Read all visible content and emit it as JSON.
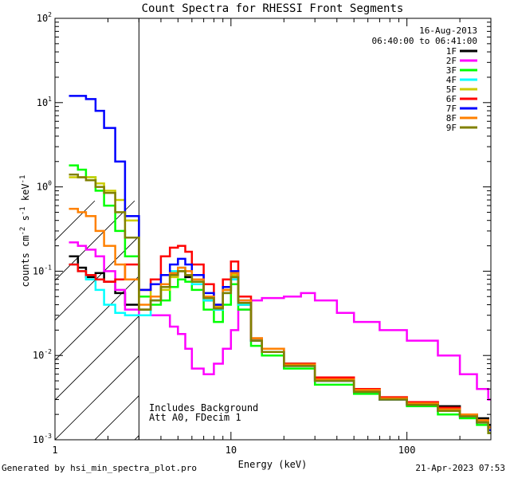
{
  "footer": {
    "left": "Generated by hsi_min_spectra_plot.pro",
    "right": "21-Apr-2023 07:53"
  },
  "chart_data": {
    "type": "line",
    "title": "Count Spectra for RHESSI Front Segments",
    "xlabel": "Energy (keV)",
    "ylabel": "counts cm-2 s-1 keV-1",
    "ylabel_parts": [
      "counts cm",
      "-2",
      " s",
      "-1",
      " keV",
      "-1"
    ],
    "xscale": "log",
    "yscale": "log",
    "xlim": [
      1,
      300
    ],
    "ylim": [
      0.001,
      100
    ],
    "x_ticks": [
      {
        "value": 1,
        "label": "1"
      },
      {
        "value": 10,
        "label": "10"
      },
      {
        "value": 100,
        "label": "100"
      }
    ],
    "y_ticks": [
      {
        "value": 0.001,
        "base": "10",
        "exp": "-3"
      },
      {
        "value": 0.01,
        "base": "10",
        "exp": "-2"
      },
      {
        "value": 0.1,
        "base": "10",
        "exp": "-1"
      },
      {
        "value": 1,
        "base": "10",
        "exp": "0"
      },
      {
        "value": 10,
        "base": "10",
        "exp": "1"
      },
      {
        "value": 100,
        "base": "10",
        "exp": "2"
      }
    ],
    "date": "16-Aug-2013",
    "time_range": "06:40:00 to 06:41:00",
    "annotations": [
      "Includes Background",
      "Att A0, FDecim 1"
    ],
    "shaded_region": {
      "x_range": [
        1,
        3
      ],
      "style": "diagonal-hatch"
    },
    "series": [
      {
        "name": "1F",
        "color": "#000000",
        "x": [
          1.2,
          1.35,
          1.5,
          1.7,
          1.9,
          2.2,
          2.5,
          3.0,
          3.5,
          4.0,
          4.5,
          5.0,
          5.5,
          6.0,
          7.0,
          8.0,
          9.0,
          10.0,
          11.0,
          13.0,
          15.0,
          20.0,
          30.0,
          50.0,
          70.0,
          100.0,
          150.0,
          200.0,
          250.0,
          290.0
        ],
        "values": [
          0.15,
          0.11,
          0.085,
          0.095,
          0.075,
          0.055,
          0.04,
          0.035,
          0.045,
          0.065,
          0.09,
          0.1,
          0.085,
          0.07,
          0.045,
          0.035,
          0.06,
          0.085,
          0.04,
          0.015,
          0.012,
          0.008,
          0.005,
          0.004,
          0.003,
          0.0028,
          0.0025,
          0.002,
          0.0018,
          0.0015
        ]
      },
      {
        "name": "2F",
        "color": "#ff00ff",
        "x": [
          1.2,
          1.35,
          1.5,
          1.7,
          1.9,
          2.2,
          2.5,
          3.0,
          3.5,
          4.0,
          4.5,
          5.0,
          5.5,
          6.0,
          7.0,
          8.0,
          9.0,
          10.0,
          11.0,
          13.0,
          15.0,
          20.0,
          25.0,
          30.0,
          40.0,
          50.0,
          70.0,
          100.0,
          150.0,
          200.0,
          250.0,
          290.0
        ],
        "values": [
          0.22,
          0.2,
          0.18,
          0.15,
          0.1,
          0.06,
          0.035,
          0.03,
          0.03,
          0.03,
          0.022,
          0.018,
          0.012,
          0.007,
          0.006,
          0.008,
          0.012,
          0.02,
          0.035,
          0.045,
          0.048,
          0.05,
          0.055,
          0.045,
          0.032,
          0.025,
          0.02,
          0.015,
          0.01,
          0.006,
          0.004,
          0.003
        ]
      },
      {
        "name": "3F",
        "color": "#00ff00",
        "x": [
          1.2,
          1.35,
          1.5,
          1.7,
          1.9,
          2.2,
          2.5,
          3.0,
          3.5,
          4.0,
          4.5,
          5.0,
          5.5,
          6.0,
          7.0,
          8.0,
          9.0,
          10.0,
          11.0,
          13.0,
          15.0,
          20.0,
          30.0,
          50.0,
          70.0,
          100.0,
          150.0,
          200.0,
          250.0,
          290.0
        ],
        "values": [
          1.8,
          1.6,
          1.3,
          0.9,
          0.6,
          0.3,
          0.15,
          0.05,
          0.04,
          0.045,
          0.065,
          0.08,
          0.075,
          0.06,
          0.035,
          0.025,
          0.04,
          0.07,
          0.035,
          0.013,
          0.01,
          0.007,
          0.0045,
          0.0035,
          0.003,
          0.0025,
          0.002,
          0.0018,
          0.0015,
          0.0012
        ]
      },
      {
        "name": "4F",
        "color": "#00ffff",
        "x": [
          1.2,
          1.35,
          1.5,
          1.7,
          1.9,
          2.2,
          2.5,
          3.0,
          3.5,
          4.0,
          4.5,
          5.0,
          5.5,
          6.0,
          7.0,
          8.0,
          9.0,
          10.0,
          11.0,
          13.0,
          15.0,
          20.0,
          30.0,
          50.0,
          70.0,
          100.0,
          150.0,
          200.0,
          250.0,
          290.0
        ],
        "values": [
          0.12,
          0.1,
          0.08,
          0.06,
          0.04,
          0.032,
          0.03,
          0.03,
          0.045,
          0.07,
          0.1,
          0.11,
          0.09,
          0.07,
          0.045,
          0.035,
          0.055,
          0.08,
          0.04,
          0.015,
          0.011,
          0.0075,
          0.005,
          0.0038,
          0.003,
          0.0026,
          0.0022,
          0.0019,
          0.0016,
          0.0013
        ]
      },
      {
        "name": "5F",
        "color": "#cccc00",
        "x": [
          1.2,
          1.35,
          1.5,
          1.7,
          1.9,
          2.2,
          2.5,
          3.0,
          3.5,
          4.0,
          4.5,
          5.0,
          5.5,
          6.0,
          7.0,
          8.0,
          9.0,
          10.0,
          11.0,
          13.0,
          15.0,
          20.0,
          30.0,
          50.0,
          70.0,
          100.0,
          150.0,
          200.0,
          250.0,
          290.0
        ],
        "values": [
          1.3,
          1.3,
          1.3,
          1.1,
          0.9,
          0.7,
          0.4,
          0.06,
          0.05,
          0.06,
          0.085,
          0.1,
          0.09,
          0.075,
          0.05,
          0.038,
          0.06,
          0.09,
          0.045,
          0.016,
          0.012,
          0.008,
          0.0052,
          0.004,
          0.0032,
          0.0028,
          0.0024,
          0.002,
          0.0017,
          0.0014
        ]
      },
      {
        "name": "6F",
        "color": "#ff0000",
        "x": [
          1.2,
          1.35,
          1.5,
          1.7,
          1.9,
          2.2,
          2.5,
          3.0,
          3.5,
          4.0,
          4.5,
          5.0,
          5.5,
          6.0,
          7.0,
          8.0,
          9.0,
          10.0,
          11.0,
          13.0,
          15.0,
          20.0,
          30.0,
          50.0,
          70.0,
          100.0,
          150.0,
          200.0,
          250.0,
          290.0
        ],
        "values": [
          0.12,
          0.1,
          0.09,
          0.08,
          0.075,
          0.08,
          0.12,
          0.06,
          0.08,
          0.15,
          0.19,
          0.2,
          0.17,
          0.12,
          0.07,
          0.04,
          0.08,
          0.13,
          0.05,
          0.016,
          0.012,
          0.008,
          0.0055,
          0.004,
          0.0032,
          0.0028,
          0.0024,
          0.002,
          0.0017,
          0.0014
        ]
      },
      {
        "name": "7F",
        "color": "#0000ff",
        "x": [
          1.2,
          1.35,
          1.5,
          1.7,
          1.9,
          2.2,
          2.5,
          3.0,
          3.5,
          4.0,
          4.5,
          5.0,
          5.5,
          6.0,
          7.0,
          8.0,
          9.0,
          10.0,
          11.0,
          13.0,
          15.0,
          20.0,
          30.0,
          50.0,
          70.0,
          100.0,
          150.0,
          200.0,
          250.0,
          290.0
        ],
        "values": [
          12.0,
          12.0,
          11.0,
          8.0,
          5.0,
          2.0,
          0.45,
          0.06,
          0.07,
          0.09,
          0.12,
          0.14,
          0.12,
          0.09,
          0.055,
          0.04,
          0.065,
          0.1,
          0.045,
          0.015,
          0.011,
          0.0075,
          0.005,
          0.0037,
          0.003,
          0.0026,
          0.0022,
          0.0019,
          0.0016,
          0.0013
        ]
      },
      {
        "name": "8F",
        "color": "#ff8000",
        "x": [
          1.2,
          1.35,
          1.5,
          1.7,
          1.9,
          2.2,
          2.5,
          3.0,
          3.5,
          4.0,
          4.5,
          5.0,
          5.5,
          6.0,
          7.0,
          8.0,
          9.0,
          10.0,
          11.0,
          13.0,
          15.0,
          20.0,
          30.0,
          50.0,
          70.0,
          100.0,
          150.0,
          200.0,
          250.0,
          290.0
        ],
        "values": [
          0.55,
          0.5,
          0.45,
          0.3,
          0.2,
          0.12,
          0.08,
          0.04,
          0.05,
          0.07,
          0.095,
          0.11,
          0.1,
          0.08,
          0.05,
          0.037,
          0.06,
          0.095,
          0.045,
          0.016,
          0.012,
          0.0078,
          0.0052,
          0.0039,
          0.0031,
          0.0027,
          0.0023,
          0.002,
          0.0017,
          0.0014
        ]
      },
      {
        "name": "9F",
        "color": "#808000",
        "x": [
          1.2,
          1.35,
          1.5,
          1.7,
          1.9,
          2.2,
          2.5,
          3.0,
          3.5,
          4.0,
          4.5,
          5.0,
          5.5,
          6.0,
          7.0,
          8.0,
          9.0,
          10.0,
          11.0,
          13.0,
          15.0,
          20.0,
          30.0,
          50.0,
          70.0,
          100.0,
          150.0,
          200.0,
          250.0,
          290.0
        ],
        "values": [
          1.4,
          1.3,
          1.2,
          1.0,
          0.85,
          0.5,
          0.25,
          0.035,
          0.045,
          0.065,
          0.09,
          0.1,
          0.09,
          0.075,
          0.048,
          0.036,
          0.055,
          0.085,
          0.042,
          0.015,
          0.011,
          0.0075,
          0.005,
          0.0037,
          0.003,
          0.0026,
          0.0022,
          0.0019,
          0.0016,
          0.0012
        ]
      }
    ]
  }
}
